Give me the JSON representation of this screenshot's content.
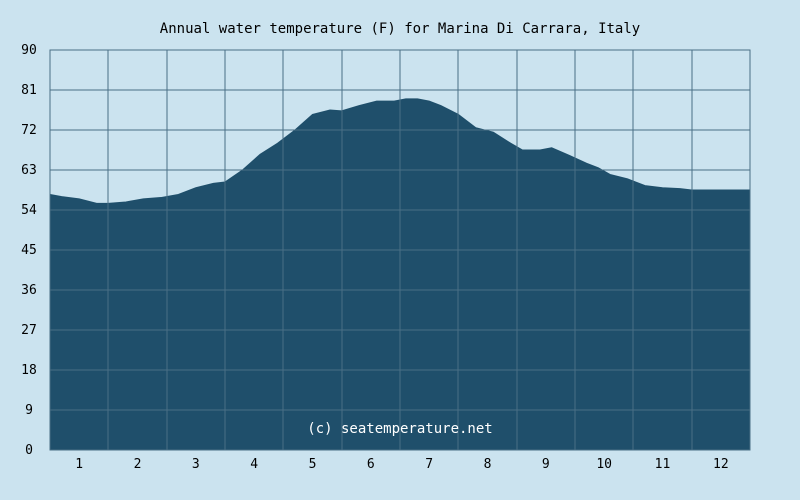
{
  "chart_data": {
    "type": "area",
    "title": "Annual water temperature (F) for Marina Di Carrara, Italy",
    "xlabel": "",
    "ylabel": "",
    "x_tick_labels": [
      "1",
      "2",
      "3",
      "4",
      "5",
      "6",
      "7",
      "8",
      "9",
      "10",
      "11",
      "12"
    ],
    "y_ticks": [
      0,
      9,
      18,
      27,
      36,
      45,
      54,
      63,
      72,
      81,
      90
    ],
    "ylim": [
      0,
      90
    ],
    "xlim": [
      0,
      12
    ],
    "grid": true,
    "watermark": "(c) seatemperature.net",
    "colors": {
      "background": "#cbe3ef",
      "plot_background": "#cbe3ef",
      "area_fill": "#1f4f6b",
      "grid_line": "#4a6f86",
      "watermark": "#ffffff"
    },
    "series": [
      {
        "x": [
          0,
          0.2,
          0.5,
          0.8,
          1.0,
          1.3,
          1.6,
          1.9,
          2.2,
          2.5,
          2.8,
          3.0,
          3.3,
          3.6,
          3.9,
          4.2,
          4.5,
          4.8,
          5.0,
          5.3,
          5.6,
          5.9,
          6.1,
          6.3,
          6.5,
          6.7,
          7.0,
          7.3,
          7.6,
          7.9,
          8.1,
          8.4,
          8.6,
          8.9,
          9.2,
          9.4,
          9.6,
          9.9,
          10.2,
          10.5,
          10.8,
          11.0,
          11.3,
          11.6,
          11.9,
          12.0
        ],
        "values": [
          57.5,
          57,
          56.5,
          55.5,
          55.5,
          55.8,
          56.5,
          56.8,
          57.5,
          59,
          60,
          60.3,
          63,
          66.5,
          69,
          72,
          75.5,
          76.5,
          76.3,
          77.5,
          78.5,
          78.5,
          79,
          79,
          78.5,
          77.5,
          75.5,
          72.5,
          71.5,
          69,
          67.5,
          67.5,
          68,
          66.3,
          64.5,
          63.5,
          62,
          61,
          59.5,
          59,
          58.8,
          58.5,
          58.5,
          58.5,
          58.5,
          58.5
        ]
      }
    ]
  }
}
